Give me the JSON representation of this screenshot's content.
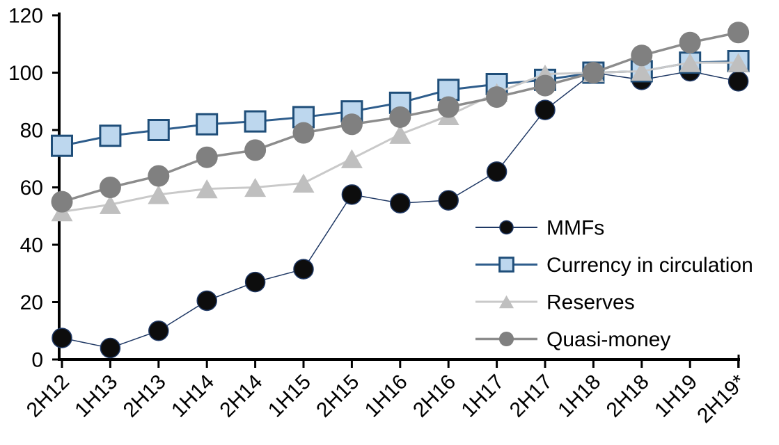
{
  "chart_data": {
    "type": "line",
    "title": "",
    "xlabel": "",
    "ylabel": "",
    "ylim": [
      0,
      120
    ],
    "yticks": [
      0,
      20,
      40,
      60,
      80,
      100,
      120
    ],
    "grid": false,
    "legend_position": "inside-right-middle",
    "axis_color": "#000000",
    "background": "#ffffff",
    "categories": [
      "2H12",
      "1H13",
      "2H13",
      "1H14",
      "2H14",
      "1H15",
      "2H15",
      "1H16",
      "2H16",
      "1H17",
      "2H17",
      "1H18",
      "2H18",
      "1H19",
      "2H19*"
    ],
    "series": [
      {
        "name": "MMFs",
        "marker": "circle",
        "marker_fill": "#0d0d0d",
        "marker_stroke": "#1f3864",
        "line_color": "#1f3864",
        "line_width": 1.5,
        "marker_size": 28,
        "values": [
          7.5,
          4,
          10,
          20.5,
          27,
          31.5,
          57.5,
          54.5,
          55.5,
          65.5,
          87,
          100,
          97.5,
          100.5,
          97
        ]
      },
      {
        "name": "Currency in circulation",
        "marker": "square",
        "marker_fill": "#bdd7ee",
        "marker_stroke": "#1f4e79",
        "line_color": "#2e5d8c",
        "line_width": 3,
        "marker_size": 29,
        "values": [
          74.5,
          78,
          80,
          82,
          83,
          84.5,
          86.5,
          89.5,
          94,
          96,
          97.5,
          100,
          100.5,
          103.5,
          104
        ]
      },
      {
        "name": "Reserves",
        "marker": "triangle",
        "marker_fill": "#bfbfbf",
        "marker_stroke": "none",
        "line_color": "#c9c9c9",
        "line_width": 3,
        "marker_size": 31,
        "values": [
          51.5,
          54,
          57.5,
          59.5,
          60,
          61.5,
          70,
          78.5,
          85,
          93,
          99.5,
          100,
          100.5,
          103.5,
          103.5
        ]
      },
      {
        "name": "Quasi-money",
        "marker": "circle",
        "marker_fill": "#808080",
        "marker_stroke": "none",
        "line_color": "#8c8c8c",
        "line_width": 3.5,
        "marker_size": 31,
        "values": [
          55,
          60,
          64,
          70.5,
          73,
          79,
          82,
          84.5,
          88,
          91.5,
          95.5,
          100,
          106,
          110.5,
          114
        ]
      }
    ]
  }
}
